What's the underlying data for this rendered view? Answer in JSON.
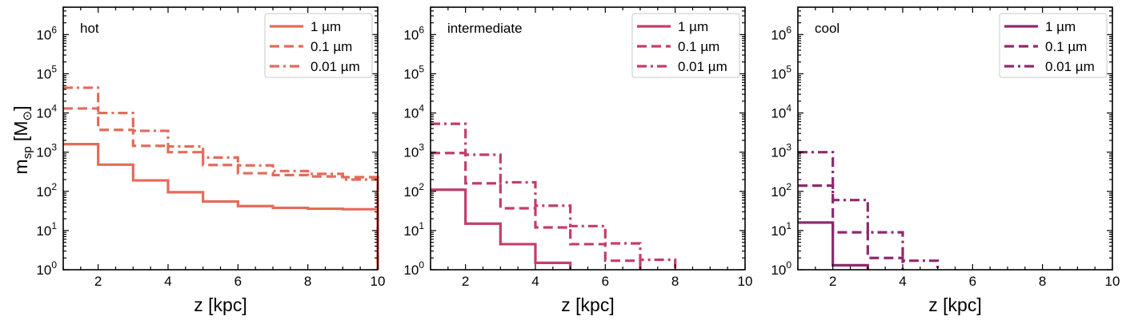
{
  "chart_data": [
    {
      "type": "line",
      "step": true,
      "title": "",
      "panel_label": "hot",
      "color": "#e46b5b",
      "xlabel": "z [kpc]",
      "ylabel": "m_sp [M_⊙]",
      "ylabel_main": "m",
      "ylabel_sub": "sp",
      "ylabel_bracket": "[M",
      "ylabel_sun": "⊙",
      "ylabel_close": "]",
      "xlim": [
        1,
        10
      ],
      "ylim": [
        1,
        5000000
      ],
      "yscale": "log",
      "xticks": [
        2,
        4,
        6,
        8,
        10
      ],
      "xtick_labels": [
        "2",
        "4",
        "6",
        "8",
        "10"
      ],
      "ytick_exponents": [
        "0",
        "1",
        "2",
        "3",
        "4",
        "5",
        "6"
      ],
      "ytick_base": "10",
      "legend_position": "top-right",
      "series": [
        {
          "name": "1 µm",
          "style": "solid",
          "edges": [
            1,
            2,
            3,
            4,
            5,
            6,
            7,
            8,
            9,
            10
          ],
          "values": [
            1600,
            480,
            190,
            95,
            55,
            42,
            38,
            36,
            35
          ]
        },
        {
          "name": "0.1 µm",
          "style": "dashed",
          "edges": [
            1,
            2,
            3,
            4,
            5,
            6,
            7,
            8,
            9,
            10
          ],
          "values": [
            13000,
            3700,
            1450,
            1000,
            470,
            290,
            260,
            240,
            230
          ]
        },
        {
          "name": "0.01 µm",
          "style": "dashdot",
          "edges": [
            1,
            2,
            3,
            4,
            5,
            6,
            7,
            8,
            9,
            10
          ],
          "values": [
            44000,
            10000,
            3500,
            1400,
            730,
            460,
            330,
            280,
            200
          ]
        }
      ]
    },
    {
      "type": "line",
      "step": true,
      "title": "",
      "panel_label": "intermediate",
      "color": "#c33d6c",
      "xlabel": "z [kpc]",
      "xlim": [
        1,
        10
      ],
      "ylim": [
        1,
        5000000
      ],
      "yscale": "log",
      "xticks": [
        2,
        4,
        6,
        8,
        10
      ],
      "xtick_labels": [
        "2",
        "4",
        "6",
        "8",
        "10"
      ],
      "ytick_exponents": [
        "0",
        "1",
        "2",
        "3",
        "4",
        "5",
        "6"
      ],
      "ytick_base": "10",
      "legend_position": "top-right",
      "series": [
        {
          "name": "1 µm",
          "style": "solid",
          "edges": [
            1,
            2,
            3,
            4,
            5
          ],
          "values": [
            110,
            15,
            4.5,
            1.5
          ]
        },
        {
          "name": "0.1 µm",
          "style": "dashed",
          "edges": [
            1,
            2,
            3,
            4,
            5,
            6,
            7
          ],
          "values": [
            950,
            160,
            37,
            12,
            4.5,
            1.7
          ]
        },
        {
          "name": "0.01 µm",
          "style": "dashdot",
          "edges": [
            1,
            2,
            3,
            4,
            5,
            6,
            7,
            8
          ],
          "values": [
            5300,
            860,
            170,
            43,
            13,
            4.7,
            1.8
          ]
        }
      ]
    },
    {
      "type": "line",
      "step": true,
      "title": "",
      "panel_label": "cool",
      "color": "#8d2a6e",
      "xlabel": "z [kpc]",
      "xlim": [
        1,
        10
      ],
      "ylim": [
        1,
        5000000
      ],
      "yscale": "log",
      "xticks": [
        2,
        4,
        6,
        8,
        10
      ],
      "xtick_labels": [
        "2",
        "4",
        "6",
        "8",
        "10"
      ],
      "ytick_exponents": [
        "0",
        "1",
        "2",
        "3",
        "4",
        "5",
        "6"
      ],
      "ytick_base": "10",
      "legend_position": "top-right",
      "series": [
        {
          "name": "1 µm",
          "style": "solid",
          "edges": [
            1,
            2,
            3
          ],
          "values": [
            16,
            1.3
          ]
        },
        {
          "name": "0.1 µm",
          "style": "dashed",
          "edges": [
            1,
            2,
            3,
            4
          ],
          "values": [
            140,
            9,
            2
          ]
        },
        {
          "name": "0.01 µm",
          "style": "dashdot",
          "edges": [
            1,
            2,
            3,
            4,
            5
          ],
          "values": [
            1000,
            60,
            9,
            1.7
          ]
        }
      ]
    }
  ]
}
